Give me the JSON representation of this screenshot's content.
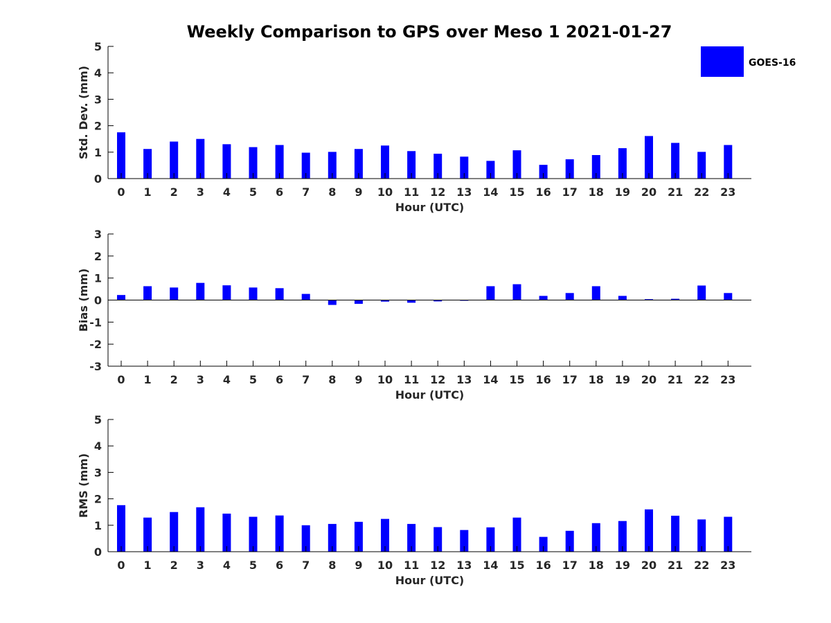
{
  "title": "Weekly Comparison to GPS over Meso 1 2021-01-27",
  "legend": {
    "label": "GOES-16",
    "color": "#0000ff"
  },
  "chart_data": [
    {
      "type": "bar",
      "ylabel": "Std. Dev. (mm)",
      "xlabel": "Hour (UTC)",
      "ylim": [
        0,
        5
      ],
      "yticks": [
        0,
        1,
        2,
        3,
        4,
        5
      ],
      "categories": [
        "0",
        "1",
        "2",
        "3",
        "4",
        "5",
        "6",
        "7",
        "8",
        "9",
        "10",
        "11",
        "12",
        "13",
        "14",
        "15",
        "16",
        "17",
        "18",
        "19",
        "20",
        "21",
        "22",
        "23"
      ],
      "series": [
        {
          "name": "GOES-16",
          "color": "#0000ff",
          "values": [
            1.75,
            1.12,
            1.4,
            1.5,
            1.3,
            1.19,
            1.27,
            0.98,
            1.01,
            1.12,
            1.25,
            1.04,
            0.94,
            0.83,
            0.67,
            1.07,
            0.52,
            0.73,
            0.89,
            1.15,
            1.61,
            1.35,
            1.01,
            1.27
          ]
        }
      ]
    },
    {
      "type": "bar",
      "ylabel": "Bias (mm)",
      "xlabel": "Hour (UTC)",
      "ylim": [
        -3,
        3
      ],
      "yticks": [
        -3,
        -2,
        -1,
        0,
        1,
        2,
        3
      ],
      "categories": [
        "0",
        "1",
        "2",
        "3",
        "4",
        "5",
        "6",
        "7",
        "8",
        "9",
        "10",
        "11",
        "12",
        "13",
        "14",
        "15",
        "16",
        "17",
        "18",
        "19",
        "20",
        "21",
        "22",
        "23"
      ],
      "series": [
        {
          "name": "GOES-16",
          "color": "#0000ff",
          "values": [
            0.23,
            0.63,
            0.57,
            0.78,
            0.67,
            0.57,
            0.54,
            0.28,
            -0.22,
            -0.17,
            -0.07,
            -0.12,
            -0.06,
            -0.03,
            0.63,
            0.72,
            0.19,
            0.32,
            0.63,
            0.19,
            0.04,
            0.06,
            0.66,
            0.32
          ]
        }
      ]
    },
    {
      "type": "bar",
      "ylabel": "RMS (mm)",
      "xlabel": "Hour (UTC)",
      "ylim": [
        0,
        5
      ],
      "yticks": [
        0,
        1,
        2,
        3,
        4,
        5
      ],
      "categories": [
        "0",
        "1",
        "2",
        "3",
        "4",
        "5",
        "6",
        "7",
        "8",
        "9",
        "10",
        "11",
        "12",
        "13",
        "14",
        "15",
        "16",
        "17",
        "18",
        "19",
        "20",
        "21",
        "22",
        "23"
      ],
      "series": [
        {
          "name": "GOES-16",
          "color": "#0000ff",
          "values": [
            1.76,
            1.29,
            1.5,
            1.68,
            1.44,
            1.32,
            1.37,
            1.0,
            1.05,
            1.13,
            1.24,
            1.05,
            0.93,
            0.82,
            0.92,
            1.29,
            0.56,
            0.79,
            1.08,
            1.16,
            1.6,
            1.36,
            1.22,
            1.32
          ]
        }
      ]
    }
  ]
}
